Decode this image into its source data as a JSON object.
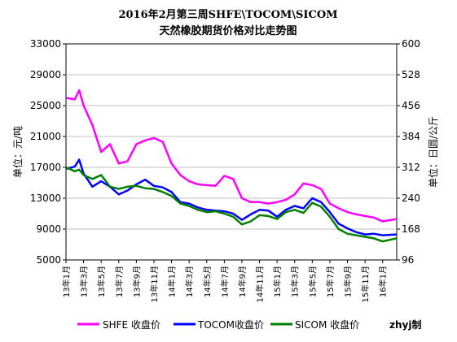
{
  "chart_data": {
    "type": "line",
    "title": "2016年2月第三周SHFE\\TOCOM\\SICOM",
    "subtitle": "天然橡胶期货价格对比走势图",
    "ylabel_left": "单位：元/吨",
    "ylabel_right": "单位：日圆/公斤",
    "credit": "zhyj制",
    "y_left": {
      "min": 5000,
      "max": 33000,
      "ticks": [
        "5000",
        "9000",
        "13000",
        "17000",
        "21000",
        "25000",
        "29000",
        "33000"
      ]
    },
    "y_right": {
      "min": 96,
      "max": 600,
      "ticks": [
        "96",
        "168",
        "240",
        "312",
        "384",
        "456",
        "528",
        "600"
      ]
    },
    "x_labels": [
      "13年1月",
      "13年3月",
      "13年5月",
      "13年7月",
      "13年9月",
      "13年11月",
      "14年1月",
      "14年3月",
      "14年5月",
      "14年7月",
      "14年9月",
      "14年11月",
      "15年1月",
      "15年3月",
      "15年5月",
      "15年7月",
      "15年9月",
      "15年11月",
      "16年1月"
    ],
    "x_range": [
      0,
      37.6
    ],
    "series": [
      {
        "name": "SHFE 收盘价",
        "color": "#ff00ff",
        "axis": "left",
        "x": [
          0,
          1,
          1.5,
          2,
          3,
          4,
          5,
          6,
          7,
          8,
          9,
          10,
          11,
          12,
          13,
          14,
          15,
          16,
          17,
          18,
          19,
          20,
          21,
          22,
          23,
          24,
          25,
          26,
          27,
          28,
          29,
          30,
          31,
          32,
          33,
          34,
          35,
          36,
          37.6
        ],
        "values": [
          26000,
          25800,
          27000,
          25000,
          22500,
          19000,
          20000,
          17500,
          17800,
          20000,
          20500,
          20800,
          20300,
          17500,
          16000,
          15200,
          14800,
          14700,
          14600,
          15900,
          15500,
          13000,
          12500,
          12500,
          12300,
          12500,
          12800,
          13500,
          14900,
          14700,
          14200,
          12300,
          11700,
          11200,
          10900,
          10700,
          10500,
          10000,
          10300
        ]
      },
      {
        "name": "TOCOM收盘价",
        "color": "#0000ff",
        "axis": "left",
        "x": [
          0,
          1,
          1.5,
          2,
          3,
          4,
          5,
          6,
          7,
          8,
          9,
          10,
          11,
          12,
          13,
          14,
          15,
          16,
          17,
          18,
          19,
          20,
          21,
          22,
          23,
          24,
          25,
          26,
          27,
          28,
          29,
          30,
          31,
          32,
          33,
          34,
          35,
          36,
          37.6
        ],
        "values": [
          16800,
          17100,
          18000,
          16200,
          14500,
          15200,
          14500,
          13500,
          14000,
          14800,
          15400,
          14600,
          14400,
          13800,
          12500,
          12300,
          11800,
          11500,
          11400,
          11300,
          11000,
          10200,
          10900,
          11500,
          11400,
          10600,
          11500,
          12000,
          11700,
          13000,
          12500,
          11200,
          9700,
          9100,
          8600,
          8300,
          8400,
          8200,
          8300
        ]
      },
      {
        "name": "SICOM 收盘价",
        "color": "#008000",
        "axis": "left",
        "x": [
          0,
          1,
          1.5,
          2,
          3,
          4,
          5,
          6,
          7,
          8,
          9,
          10,
          11,
          12,
          13,
          14,
          15,
          16,
          17,
          18,
          19,
          20,
          21,
          22,
          23,
          24,
          25,
          26,
          27,
          28,
          29,
          30,
          31,
          32,
          33,
          34,
          35,
          36,
          37.6
        ],
        "values": [
          17000,
          16500,
          16700,
          16000,
          15500,
          16000,
          14500,
          14200,
          14500,
          14600,
          14300,
          14200,
          13800,
          13300,
          12300,
          12000,
          11500,
          11200,
          11300,
          11000,
          10600,
          9600,
          10000,
          10800,
          10700,
          10300,
          11200,
          11500,
          11100,
          12400,
          11900,
          10600,
          9000,
          8400,
          8200,
          8000,
          7800,
          7400,
          7800
        ]
      }
    ]
  }
}
